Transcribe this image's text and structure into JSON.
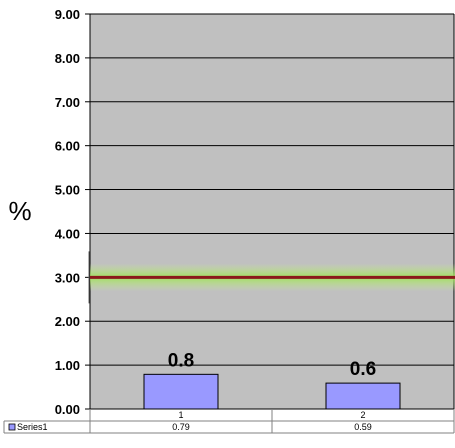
{
  "chart_data": {
    "type": "bar",
    "categories": [
      "1",
      "2"
    ],
    "series": [
      {
        "name": "Series1",
        "values": [
          0.79,
          0.59
        ],
        "data_labels": [
          "0.8",
          "0.6"
        ],
        "table_values": [
          "0.79",
          "0.59"
        ]
      }
    ],
    "ylabel": "%",
    "ylim": [
      0,
      9
    ],
    "yticks": [
      "0.00",
      "1.00",
      "2.00",
      "3.00",
      "4.00",
      "5.00",
      "6.00",
      "7.00",
      "8.00",
      "9.00"
    ],
    "reference_line": {
      "value": 3.0
    },
    "grid": true,
    "data_table": true,
    "colors": {
      "plot_bg": "#c0c0c0",
      "bar_fill": "#9999ff",
      "bar_stroke": "#000000",
      "reference_line": "#8b1a1a",
      "reference_glow": "#9ee05a"
    }
  }
}
